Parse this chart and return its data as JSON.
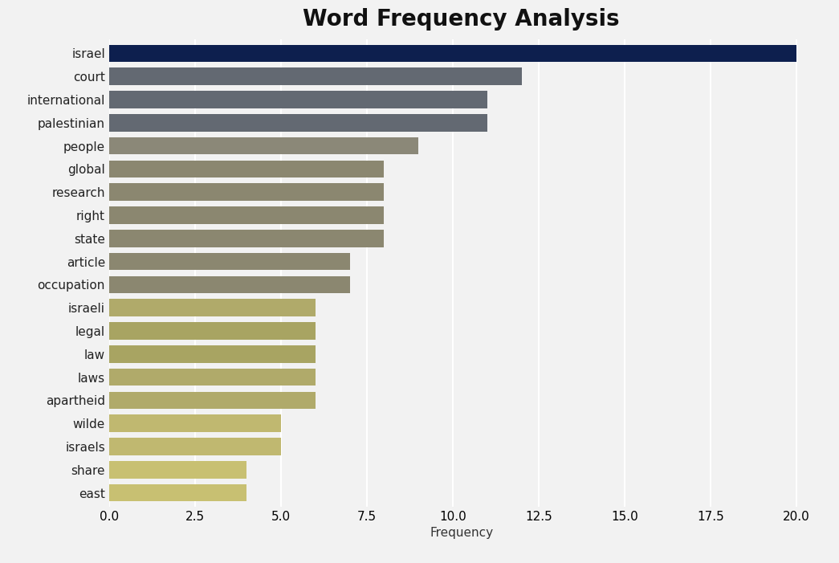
{
  "title": "Word Frequency Analysis",
  "xlabel": "Frequency",
  "categories": [
    "israel",
    "court",
    "international",
    "palestinian",
    "people",
    "global",
    "research",
    "right",
    "state",
    "article",
    "occupation",
    "israeli",
    "legal",
    "law",
    "laws",
    "apartheid",
    "wilde",
    "israels",
    "share",
    "east"
  ],
  "values": [
    20,
    12,
    11,
    11,
    9,
    8,
    8,
    8,
    8,
    7,
    7,
    6,
    6,
    6,
    6,
    6,
    5,
    5,
    4,
    4
  ],
  "colors": [
    "#0d1f4e",
    "#636972",
    "#636972",
    "#636972",
    "#8b8878",
    "#8b8770",
    "#8b8770",
    "#8b8770",
    "#8b8770",
    "#8b8770",
    "#8b8770",
    "#b0aa6a",
    "#a8a462",
    "#a8a462",
    "#b0aa6a",
    "#b0aa6a",
    "#c0b870",
    "#c0b870",
    "#c8c072",
    "#c8c072"
  ],
  "xlim": [
    0,
    20.5
  ],
  "xticks": [
    0.0,
    2.5,
    5.0,
    7.5,
    10.0,
    12.5,
    15.0,
    17.5,
    20.0
  ],
  "background_color": "#f2f2f2",
  "plot_bg_color": "#f2f2f2",
  "title_fontsize": 20,
  "label_fontsize": 11,
  "tick_fontsize": 11,
  "bar_height": 0.75
}
